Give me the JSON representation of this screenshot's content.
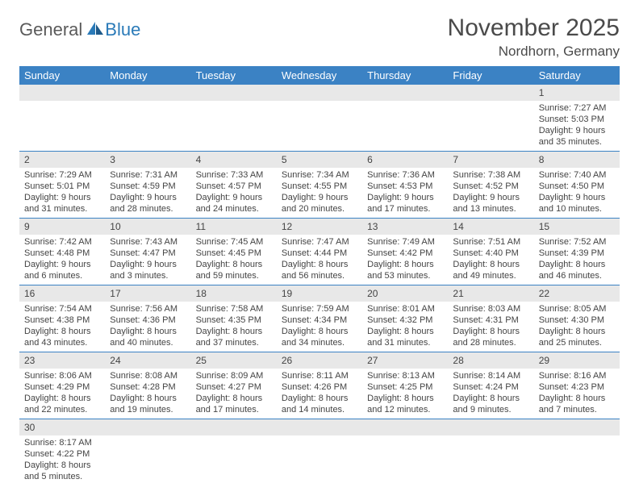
{
  "logo": {
    "general": "General",
    "blue": "Blue"
  },
  "title": "November 2025",
  "location": "Nordhorn, Germany",
  "colors": {
    "header_bg": "#3b82c4",
    "header_text": "#ffffff",
    "daynum_bg": "#e8e8e8",
    "row_border": "#3b82c4",
    "text": "#444444",
    "logo_gray": "#5a5a5a",
    "logo_blue": "#2a7ab8"
  },
  "weekdays": [
    "Sunday",
    "Monday",
    "Tuesday",
    "Wednesday",
    "Thursday",
    "Friday",
    "Saturday"
  ],
  "weeks": [
    [
      null,
      null,
      null,
      null,
      null,
      null,
      {
        "n": "1",
        "sr": "Sunrise: 7:27 AM",
        "ss": "Sunset: 5:03 PM",
        "d1": "Daylight: 9 hours",
        "d2": "and 35 minutes."
      }
    ],
    [
      {
        "n": "2",
        "sr": "Sunrise: 7:29 AM",
        "ss": "Sunset: 5:01 PM",
        "d1": "Daylight: 9 hours",
        "d2": "and 31 minutes."
      },
      {
        "n": "3",
        "sr": "Sunrise: 7:31 AM",
        "ss": "Sunset: 4:59 PM",
        "d1": "Daylight: 9 hours",
        "d2": "and 28 minutes."
      },
      {
        "n": "4",
        "sr": "Sunrise: 7:33 AM",
        "ss": "Sunset: 4:57 PM",
        "d1": "Daylight: 9 hours",
        "d2": "and 24 minutes."
      },
      {
        "n": "5",
        "sr": "Sunrise: 7:34 AM",
        "ss": "Sunset: 4:55 PM",
        "d1": "Daylight: 9 hours",
        "d2": "and 20 minutes."
      },
      {
        "n": "6",
        "sr": "Sunrise: 7:36 AM",
        "ss": "Sunset: 4:53 PM",
        "d1": "Daylight: 9 hours",
        "d2": "and 17 minutes."
      },
      {
        "n": "7",
        "sr": "Sunrise: 7:38 AM",
        "ss": "Sunset: 4:52 PM",
        "d1": "Daylight: 9 hours",
        "d2": "and 13 minutes."
      },
      {
        "n": "8",
        "sr": "Sunrise: 7:40 AM",
        "ss": "Sunset: 4:50 PM",
        "d1": "Daylight: 9 hours",
        "d2": "and 10 minutes."
      }
    ],
    [
      {
        "n": "9",
        "sr": "Sunrise: 7:42 AM",
        "ss": "Sunset: 4:48 PM",
        "d1": "Daylight: 9 hours",
        "d2": "and 6 minutes."
      },
      {
        "n": "10",
        "sr": "Sunrise: 7:43 AM",
        "ss": "Sunset: 4:47 PM",
        "d1": "Daylight: 9 hours",
        "d2": "and 3 minutes."
      },
      {
        "n": "11",
        "sr": "Sunrise: 7:45 AM",
        "ss": "Sunset: 4:45 PM",
        "d1": "Daylight: 8 hours",
        "d2": "and 59 minutes."
      },
      {
        "n": "12",
        "sr": "Sunrise: 7:47 AM",
        "ss": "Sunset: 4:44 PM",
        "d1": "Daylight: 8 hours",
        "d2": "and 56 minutes."
      },
      {
        "n": "13",
        "sr": "Sunrise: 7:49 AM",
        "ss": "Sunset: 4:42 PM",
        "d1": "Daylight: 8 hours",
        "d2": "and 53 minutes."
      },
      {
        "n": "14",
        "sr": "Sunrise: 7:51 AM",
        "ss": "Sunset: 4:40 PM",
        "d1": "Daylight: 8 hours",
        "d2": "and 49 minutes."
      },
      {
        "n": "15",
        "sr": "Sunrise: 7:52 AM",
        "ss": "Sunset: 4:39 PM",
        "d1": "Daylight: 8 hours",
        "d2": "and 46 minutes."
      }
    ],
    [
      {
        "n": "16",
        "sr": "Sunrise: 7:54 AM",
        "ss": "Sunset: 4:38 PM",
        "d1": "Daylight: 8 hours",
        "d2": "and 43 minutes."
      },
      {
        "n": "17",
        "sr": "Sunrise: 7:56 AM",
        "ss": "Sunset: 4:36 PM",
        "d1": "Daylight: 8 hours",
        "d2": "and 40 minutes."
      },
      {
        "n": "18",
        "sr": "Sunrise: 7:58 AM",
        "ss": "Sunset: 4:35 PM",
        "d1": "Daylight: 8 hours",
        "d2": "and 37 minutes."
      },
      {
        "n": "19",
        "sr": "Sunrise: 7:59 AM",
        "ss": "Sunset: 4:34 PM",
        "d1": "Daylight: 8 hours",
        "d2": "and 34 minutes."
      },
      {
        "n": "20",
        "sr": "Sunrise: 8:01 AM",
        "ss": "Sunset: 4:32 PM",
        "d1": "Daylight: 8 hours",
        "d2": "and 31 minutes."
      },
      {
        "n": "21",
        "sr": "Sunrise: 8:03 AM",
        "ss": "Sunset: 4:31 PM",
        "d1": "Daylight: 8 hours",
        "d2": "and 28 minutes."
      },
      {
        "n": "22",
        "sr": "Sunrise: 8:05 AM",
        "ss": "Sunset: 4:30 PM",
        "d1": "Daylight: 8 hours",
        "d2": "and 25 minutes."
      }
    ],
    [
      {
        "n": "23",
        "sr": "Sunrise: 8:06 AM",
        "ss": "Sunset: 4:29 PM",
        "d1": "Daylight: 8 hours",
        "d2": "and 22 minutes."
      },
      {
        "n": "24",
        "sr": "Sunrise: 8:08 AM",
        "ss": "Sunset: 4:28 PM",
        "d1": "Daylight: 8 hours",
        "d2": "and 19 minutes."
      },
      {
        "n": "25",
        "sr": "Sunrise: 8:09 AM",
        "ss": "Sunset: 4:27 PM",
        "d1": "Daylight: 8 hours",
        "d2": "and 17 minutes."
      },
      {
        "n": "26",
        "sr": "Sunrise: 8:11 AM",
        "ss": "Sunset: 4:26 PM",
        "d1": "Daylight: 8 hours",
        "d2": "and 14 minutes."
      },
      {
        "n": "27",
        "sr": "Sunrise: 8:13 AM",
        "ss": "Sunset: 4:25 PM",
        "d1": "Daylight: 8 hours",
        "d2": "and 12 minutes."
      },
      {
        "n": "28",
        "sr": "Sunrise: 8:14 AM",
        "ss": "Sunset: 4:24 PM",
        "d1": "Daylight: 8 hours",
        "d2": "and 9 minutes."
      },
      {
        "n": "29",
        "sr": "Sunrise: 8:16 AM",
        "ss": "Sunset: 4:23 PM",
        "d1": "Daylight: 8 hours",
        "d2": "and 7 minutes."
      }
    ],
    [
      {
        "n": "30",
        "sr": "Sunrise: 8:17 AM",
        "ss": "Sunset: 4:22 PM",
        "d1": "Daylight: 8 hours",
        "d2": "and 5 minutes."
      },
      null,
      null,
      null,
      null,
      null,
      null
    ]
  ]
}
